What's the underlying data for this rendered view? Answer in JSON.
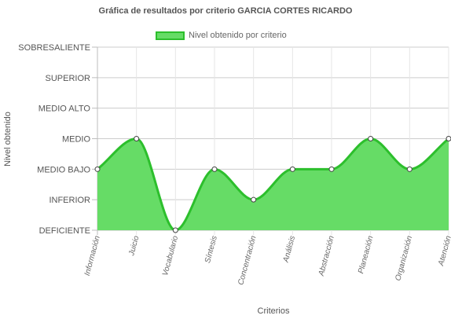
{
  "chart_data": {
    "type": "area",
    "title": "Gráfica de resultados por criterio GARCIA CORTES RICARDO",
    "xlabel": "Criterios",
    "ylabel": "Nivel obtenido",
    "categories": [
      "Información",
      "Juicio",
      "Vocabulario",
      "Síntesis",
      "Concentración",
      "Análisis",
      "Abstracción",
      "Planeación",
      "Organización",
      "Atención"
    ],
    "y_levels": [
      "DEFICIENTE",
      "INFERIOR",
      "MEDIO BAJO",
      "MEDIO",
      "MEDIO ALTO",
      "SUPERIOR",
      "SOBRESALIENTE"
    ],
    "series": [
      {
        "name": "Nivel obtenido por criterio",
        "values": [
          2,
          3,
          0,
          2,
          1,
          2,
          2,
          3,
          2,
          3
        ],
        "value_labels": [
          "MEDIO BAJO",
          "MEDIO",
          "DEFICIENTE",
          "MEDIO BAJO",
          "INFERIOR",
          "MEDIO BAJO",
          "MEDIO BAJO",
          "MEDIO",
          "MEDIO BAJO",
          "MEDIO"
        ]
      }
    ],
    "ylim": [
      0,
      6
    ],
    "grid": true,
    "legend_position": "top-center",
    "colors": {
      "fill": "#66dc66",
      "line": "#2cbf2c",
      "grid": "#e6e6e6",
      "axis": "#bdbdbd"
    }
  }
}
